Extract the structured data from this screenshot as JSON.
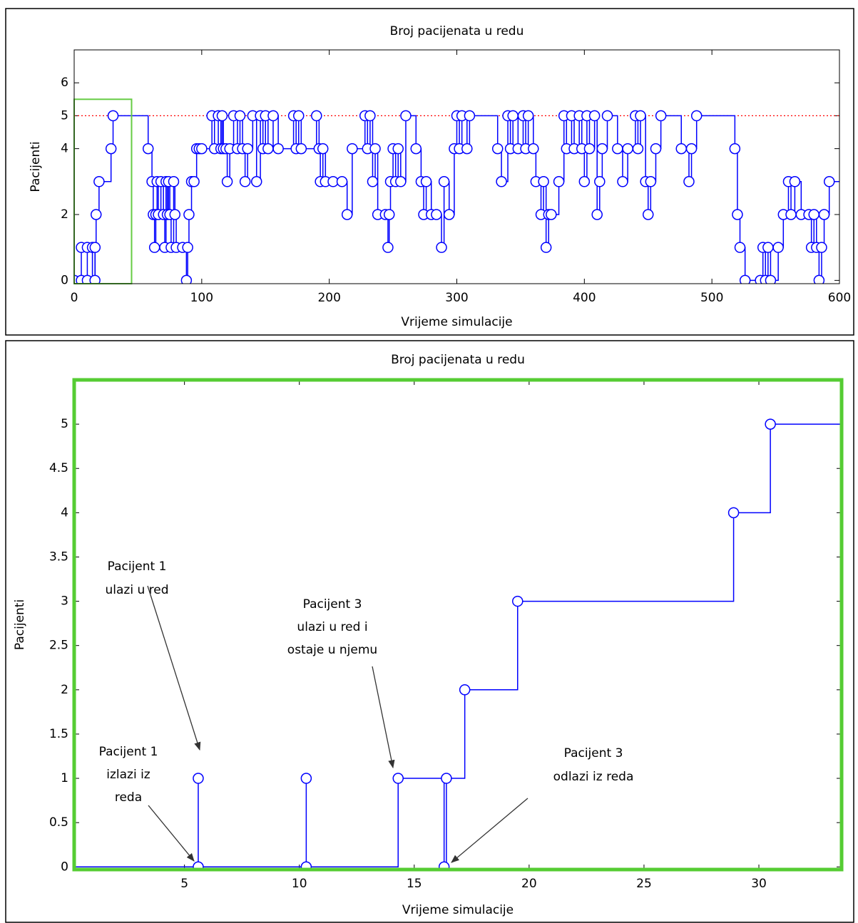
{
  "chart_data": [
    {
      "type": "line",
      "step": "post",
      "title": "Broj pacijenata u redu",
      "xlabel": "Vrijeme simulacije",
      "ylabel": "Pacijenti",
      "xlim": [
        0,
        600
      ],
      "ylim": [
        -0.1,
        7
      ],
      "xticks": [
        0,
        100,
        200,
        300,
        400,
        500,
        600
      ],
      "yticks": [
        0,
        2,
        4,
        5,
        6
      ],
      "reference_line": {
        "value": 5,
        "color": "#ff0000"
      },
      "highlight_box": {
        "xlim": [
          0,
          45
        ],
        "ylim": [
          -0.1,
          5.5
        ],
        "color": "#66cc44"
      },
      "series": [
        {
          "color": "#0000ff",
          "x": [
            0,
            5.6,
            5.6,
            10.3,
            10.3,
            14.3,
            16.3,
            16.4,
            17.2,
            19.5,
            28.9,
            30.5,
            58,
            61,
            62,
            63,
            64,
            65,
            66,
            68,
            70,
            71,
            72,
            73,
            74,
            75,
            76,
            78,
            79,
            80,
            85,
            88,
            89,
            90,
            92,
            94,
            96,
            98,
            100,
            108,
            110,
            113,
            115,
            116,
            117,
            119,
            120,
            122,
            125,
            128,
            130,
            132,
            134,
            136,
            140,
            143,
            146,
            148,
            150,
            152,
            156,
            160,
            172,
            174,
            176,
            178,
            190,
            192,
            193,
            195,
            197,
            203,
            210,
            214,
            218,
            228,
            230,
            232,
            234,
            236,
            238,
            244,
            246,
            247,
            248,
            250,
            252,
            254,
            256,
            260,
            268,
            272,
            274,
            276,
            280,
            284,
            288,
            290,
            294,
            298,
            300,
            302,
            304,
            308,
            310,
            332,
            335,
            340,
            342,
            344,
            348,
            352,
            354,
            356,
            360,
            362,
            366,
            368,
            370,
            372,
            374,
            380,
            384,
            386,
            390,
            392,
            396,
            398,
            400,
            402,
            404,
            408,
            410,
            412,
            414,
            418,
            426,
            430,
            434,
            440,
            442,
            444,
            448,
            450,
            452,
            456,
            460,
            476,
            482,
            484,
            488,
            518,
            520,
            522,
            526,
            538,
            540,
            542,
            544,
            546,
            552,
            556,
            560,
            562,
            565,
            570,
            576,
            578,
            580,
            582,
            584,
            586,
            588,
            592
          ],
          "values": [
            0,
            1,
            0,
            1,
            0,
            1,
            0,
            1,
            2,
            3,
            4,
            5,
            4,
            3,
            2,
            1,
            2,
            3,
            2,
            3,
            2,
            1,
            3,
            2,
            3,
            2,
            1,
            3,
            2,
            1,
            1,
            0,
            1,
            2,
            3,
            3,
            4,
            4,
            4,
            5,
            4,
            5,
            4,
            5,
            4,
            4,
            3,
            4,
            5,
            4,
            5,
            4,
            3,
            4,
            5,
            3,
            5,
            4,
            5,
            4,
            5,
            4,
            5,
            4,
            5,
            4,
            5,
            4,
            3,
            4,
            3,
            3,
            3,
            2,
            4,
            5,
            4,
            5,
            3,
            4,
            2,
            2,
            1,
            2,
            3,
            4,
            3,
            4,
            3,
            5,
            4,
            3,
            2,
            3,
            2,
            2,
            1,
            3,
            2,
            4,
            5,
            4,
            5,
            4,
            5,
            4,
            3,
            5,
            4,
            5,
            4,
            5,
            4,
            5,
            4,
            3,
            2,
            3,
            1,
            2,
            2,
            3,
            5,
            4,
            5,
            4,
            5,
            4,
            3,
            5,
            4,
            5,
            2,
            3,
            4,
            5,
            4,
            3,
            4,
            5,
            4,
            5,
            3,
            2,
            3,
            4,
            5,
            4,
            3,
            4,
            5,
            4,
            2,
            1,
            0,
            0,
            1,
            0,
            1,
            0,
            1,
            2,
            3,
            2,
            3,
            2,
            2,
            1,
            2,
            1,
            0,
            1,
            2,
            3
          ]
        }
      ]
    },
    {
      "type": "line",
      "step": "post",
      "title": "Broj pacijenata u redu",
      "xlabel": "Vrijeme simulacije",
      "ylabel": "Pacijenti",
      "xlim": [
        0.2,
        33.6
      ],
      "ylim": [
        -0.03,
        5.5
      ],
      "xticks": [
        5,
        10,
        15,
        20,
        25,
        30
      ],
      "yticks": [
        0,
        0.5,
        1,
        1.5,
        2,
        2.5,
        3,
        3.5,
        4,
        4.5,
        5
      ],
      "frame_color": "#55cc33",
      "series": [
        {
          "color": "#0000ff",
          "x": [
            0,
            5.6,
            5.6,
            10.3,
            10.3,
            14.3,
            16.3,
            16.4,
            17.2,
            19.5,
            28.9,
            30.5
          ],
          "values": [
            0,
            1,
            0,
            1,
            0,
            1,
            0,
            1,
            2,
            3,
            4,
            5
          ]
        }
      ],
      "annotations": [
        {
          "lines": [
            "Pacijent 1",
            "ulazi u red"
          ]
        },
        {
          "lines": [
            "Pacijent 1",
            "izlazi iz",
            "reda"
          ]
        },
        {
          "lines": [
            "Pacijent 3",
            "ulazi u red i",
            "ostaje u njemu"
          ]
        },
        {
          "lines": [
            "Pacijent 3",
            "odlazi iz reda"
          ]
        }
      ]
    }
  ]
}
